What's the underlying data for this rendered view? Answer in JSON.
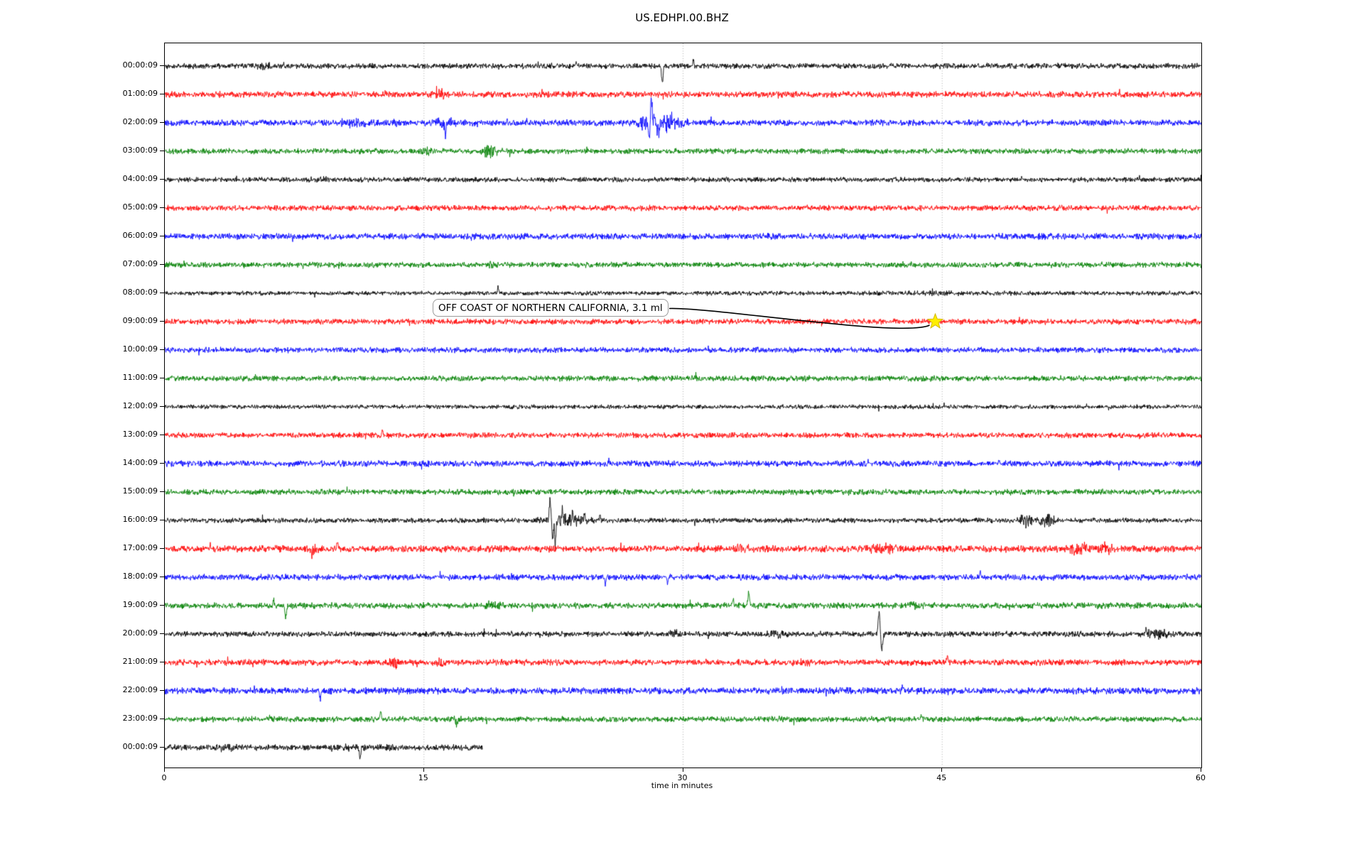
{
  "title": "US.EDHPI.00.BHZ",
  "xaxis": {
    "label": "time in minutes",
    "ticks": [
      0,
      15,
      30,
      45,
      60
    ],
    "min": 0,
    "max": 60,
    "gridlines_minutes": [
      15,
      30,
      45
    ]
  },
  "annotation": {
    "text": "OFF COAST OF NORTHERN CALIFORNIA, 3.1 ml",
    "event_row_label": "09:00:09",
    "event_minute": 44.6,
    "star_color": "#ffee00",
    "star_edge_color": "#d4b800"
  },
  "colors": {
    "trace_cycle": [
      "#000000",
      "#ff0000",
      "#0000ff",
      "#008000"
    ],
    "grid": "#999999",
    "axis": "#000000",
    "background": "#ffffff"
  },
  "chart_data": {
    "type": "line",
    "subtype": "seismogram-dayplot",
    "station": "US.EDHPI.00.BHZ",
    "xlabel": "time in minutes",
    "xlim": [
      0,
      60
    ],
    "grid": true,
    "minutes_per_row": 60,
    "rows": [
      {
        "label": "00:00:09",
        "color": "#000000",
        "amp": 4.5,
        "end_min": 60,
        "bursts": [
          {
            "t": 5.8,
            "w": 0.4,
            "a": 2.5
          }
        ],
        "spikes": [
          {
            "t": 28.8,
            "w": 0.06,
            "a": -25
          },
          {
            "t": 30.6,
            "w": 0.05,
            "a": 9
          },
          {
            "t": 23.8,
            "w": 0.05,
            "a": 5
          }
        ]
      },
      {
        "label": "01:00:09",
        "color": "#ff0000",
        "amp": 5,
        "end_min": 60,
        "bursts": [
          {
            "t": 16.0,
            "w": 0.3,
            "a": 4
          },
          {
            "t": 12.8,
            "w": 0.3,
            "a": 2.5
          }
        ],
        "spikes": []
      },
      {
        "label": "02:00:09",
        "color": "#0000ff",
        "amp": 5,
        "end_min": 60,
        "bursts": [
          {
            "t": 10.8,
            "w": 0.8,
            "a": 4.5
          },
          {
            "t": 13.4,
            "w": 0.3,
            "a": 4
          },
          {
            "t": 16.2,
            "w": 0.7,
            "a": 6
          },
          {
            "t": 28.3,
            "w": 0.8,
            "a": 16
          },
          {
            "t": 29.5,
            "w": 0.6,
            "a": 7
          }
        ],
        "spikes": [
          {
            "t": 16.25,
            "w": 0.06,
            "a": -18
          },
          {
            "t": 28.15,
            "w": 0.07,
            "a": 38
          },
          {
            "t": 28.05,
            "w": 0.06,
            "a": -30
          },
          {
            "t": 28.6,
            "w": 0.05,
            "a": -16
          },
          {
            "t": 29.3,
            "w": 0.05,
            "a": 10
          }
        ]
      },
      {
        "label": "03:00:09",
        "color": "#008000",
        "amp": 4.5,
        "end_min": 60,
        "bursts": [
          {
            "t": 18.8,
            "w": 0.45,
            "a": 8
          },
          {
            "t": 15.2,
            "w": 0.3,
            "a": 2.5
          }
        ],
        "spikes": []
      },
      {
        "label": "04:00:09",
        "color": "#000000",
        "amp": 4,
        "end_min": 60,
        "bursts": [
          {
            "t": 9.0,
            "w": 0.5,
            "a": 1.5
          }
        ],
        "spikes": []
      },
      {
        "label": "05:00:09",
        "color": "#ff0000",
        "amp": 4.5,
        "end_min": 60,
        "bursts": [],
        "spikes": []
      },
      {
        "label": "06:00:09",
        "color": "#0000ff",
        "amp": 5,
        "end_min": 60,
        "bursts": [],
        "spikes": []
      },
      {
        "label": "07:00:09",
        "color": "#008000",
        "amp": 4.5,
        "end_min": 60,
        "bursts": [
          {
            "t": 18.8,
            "w": 0.3,
            "a": 2.5
          }
        ],
        "spikes": []
      },
      {
        "label": "08:00:09",
        "color": "#000000",
        "amp": 3.5,
        "end_min": 60,
        "bursts": [
          {
            "t": 44.0,
            "w": 4.0,
            "a": 0.8
          }
        ],
        "spikes": [
          {
            "t": 19.3,
            "w": 0.05,
            "a": 9
          }
        ]
      },
      {
        "label": "09:00:09",
        "color": "#ff0000",
        "amp": 4.5,
        "end_min": 60,
        "bursts": [],
        "spikes": []
      },
      {
        "label": "10:00:09",
        "color": "#0000ff",
        "amp": 4.5,
        "end_min": 60,
        "bursts": [],
        "spikes": []
      },
      {
        "label": "11:00:09",
        "color": "#008000",
        "amp": 4.5,
        "end_min": 60,
        "bursts": [],
        "spikes": []
      },
      {
        "label": "12:00:09",
        "color": "#000000",
        "amp": 3.5,
        "end_min": 60,
        "bursts": [],
        "spikes": []
      },
      {
        "label": "13:00:09",
        "color": "#ff0000",
        "amp": 4.5,
        "end_min": 60,
        "bursts": [],
        "spikes": [
          {
            "t": 12.6,
            "w": 0.05,
            "a": 7
          }
        ]
      },
      {
        "label": "14:00:09",
        "color": "#0000ff",
        "amp": 5,
        "end_min": 60,
        "bursts": [
          {
            "t": 28.5,
            "w": 0.5,
            "a": 2.5
          }
        ],
        "spikes": []
      },
      {
        "label": "15:00:09",
        "color": "#008000",
        "amp": 4.5,
        "end_min": 60,
        "bursts": [],
        "spikes": []
      },
      {
        "label": "16:00:09",
        "color": "#000000",
        "amp": 4,
        "end_min": 60,
        "bursts": [
          {
            "t": 23.2,
            "w": 1.2,
            "a": 7
          },
          {
            "t": 18.4,
            "w": 0.2,
            "a": 3
          },
          {
            "t": 49.8,
            "w": 0.4,
            "a": 8
          },
          {
            "t": 51.1,
            "w": 0.4,
            "a": 9
          }
        ],
        "spikes": [
          {
            "t": 22.3,
            "w": 0.06,
            "a": 30
          },
          {
            "t": 22.45,
            "w": 0.06,
            "a": -27
          },
          {
            "t": 22.6,
            "w": 0.05,
            "a": -34
          },
          {
            "t": 23.0,
            "w": 0.05,
            "a": 14
          },
          {
            "t": 23.6,
            "w": 0.05,
            "a": 12
          },
          {
            "t": 24.3,
            "w": 0.05,
            "a": 10
          },
          {
            "t": 25.2,
            "w": 0.04,
            "a": 8
          }
        ]
      },
      {
        "label": "17:00:09",
        "color": "#ff0000",
        "amp": 5.5,
        "end_min": 60,
        "bursts": [
          {
            "t": 8.6,
            "w": 0.3,
            "a": 4
          },
          {
            "t": 33.5,
            "w": 0.6,
            "a": 4
          },
          {
            "t": 41.5,
            "w": 0.8,
            "a": 5
          },
          {
            "t": 52.9,
            "w": 0.5,
            "a": 9
          },
          {
            "t": 54.5,
            "w": 0.4,
            "a": 7
          }
        ],
        "spikes": [
          {
            "t": 10.0,
            "w": 0.05,
            "a": 10
          },
          {
            "t": 8.5,
            "w": 0.05,
            "a": -8
          }
        ]
      },
      {
        "label": "18:00:09",
        "color": "#0000ff",
        "amp": 5,
        "end_min": 60,
        "bursts": [
          {
            "t": 20.0,
            "w": 0.3,
            "a": 2.5
          }
        ],
        "spikes": [
          {
            "t": 25.5,
            "w": 0.05,
            "a": -9
          },
          {
            "t": 29.1,
            "w": 0.05,
            "a": -8
          },
          {
            "t": 47.2,
            "w": 0.05,
            "a": 8
          }
        ]
      },
      {
        "label": "19:00:09",
        "color": "#008000",
        "amp": 5,
        "end_min": 60,
        "bursts": [
          {
            "t": 19.0,
            "w": 0.4,
            "a": 4
          },
          {
            "t": 43.5,
            "w": 0.4,
            "a": 3
          }
        ],
        "spikes": [
          {
            "t": 7.0,
            "w": 0.06,
            "a": -16
          },
          {
            "t": 6.3,
            "w": 0.05,
            "a": 8
          },
          {
            "t": 32.9,
            "w": 0.05,
            "a": 8
          },
          {
            "t": 33.8,
            "w": 0.07,
            "a": 18
          }
        ]
      },
      {
        "label": "20:00:09",
        "color": "#000000",
        "amp": 4.5,
        "end_min": 60,
        "bursts": [
          {
            "t": 29.5,
            "w": 0.4,
            "a": 4
          },
          {
            "t": 35.5,
            "w": 0.4,
            "a": 4
          },
          {
            "t": 57.5,
            "w": 0.8,
            "a": 5
          }
        ],
        "spikes": [
          {
            "t": 41.35,
            "w": 0.07,
            "a": 32
          },
          {
            "t": 41.5,
            "w": 0.08,
            "a": -22
          },
          {
            "t": 56.8,
            "w": 0.05,
            "a": 8
          }
        ]
      },
      {
        "label": "21:00:09",
        "color": "#ff0000",
        "amp": 5,
        "end_min": 60,
        "bursts": [
          {
            "t": 13.4,
            "w": 0.35,
            "a": 6
          },
          {
            "t": 15.9,
            "w": 0.3,
            "a": 6
          },
          {
            "t": 37.0,
            "w": 0.4,
            "a": 3
          }
        ],
        "spikes": [
          {
            "t": 45.3,
            "w": 0.05,
            "a": 9
          }
        ]
      },
      {
        "label": "22:00:09",
        "color": "#0000ff",
        "amp": 5.5,
        "end_min": 60,
        "bursts": [],
        "spikes": [
          {
            "t": 9.0,
            "w": 0.05,
            "a": -11
          },
          {
            "t": 42.7,
            "w": 0.05,
            "a": 8
          }
        ]
      },
      {
        "label": "23:00:09",
        "color": "#008000",
        "amp": 4.5,
        "end_min": 60,
        "bursts": [
          {
            "t": 16.8,
            "w": 0.3,
            "a": 4
          }
        ],
        "spikes": [
          {
            "t": 12.5,
            "w": 0.05,
            "a": 12
          },
          {
            "t": 16.9,
            "w": 0.05,
            "a": -10
          },
          {
            "t": 43.8,
            "w": 0.04,
            "a": 6
          }
        ]
      },
      {
        "label": "00:00:09",
        "color": "#000000",
        "amp": 5,
        "end_min": 18.4,
        "bursts": [
          {
            "t": 3.5,
            "w": 0.5,
            "a": 2.5
          },
          {
            "t": 13.0,
            "w": 0.4,
            "a": 2.5
          }
        ],
        "spikes": [
          {
            "t": 11.3,
            "w": 0.06,
            "a": -13
          }
        ]
      }
    ]
  }
}
